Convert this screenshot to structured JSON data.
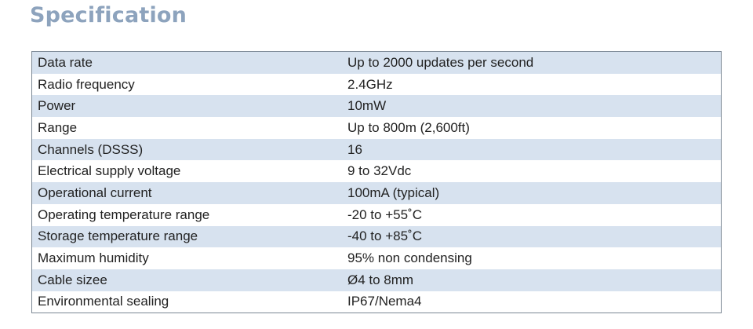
{
  "section": {
    "title": "Specification"
  },
  "table": {
    "rows": [
      {
        "label": "Data rate",
        "value": "Up to 2000 updates per second"
      },
      {
        "label": "Radio frequency",
        "value": "2.4GHz"
      },
      {
        "label": "Power",
        "value": "10mW"
      },
      {
        "label": "Range",
        "value": "Up to 800m (2,600ft)"
      },
      {
        "label": "Channels (DSSS)",
        "value": "16"
      },
      {
        "label": "Electrical supply voltage",
        "value": "9 to 32Vdc"
      },
      {
        "label": "Operational current",
        "value": "100mA (typical)"
      },
      {
        "label": "Operating temperature range",
        "value": "-20 to +55˚C"
      },
      {
        "label": "Storage temperature range",
        "value": "-40 to +85˚C"
      },
      {
        "label": "Maximum humidity",
        "value": "95% non condensing"
      },
      {
        "label": "Cable sizee",
        "value": "Ø4 to 8mm"
      },
      {
        "label": "Environmental sealing",
        "value": "IP67/Nema4"
      }
    ]
  },
  "colors": {
    "title": "#8da3bd",
    "row_shade": "#d7e2ef",
    "border": "#7b8794"
  }
}
